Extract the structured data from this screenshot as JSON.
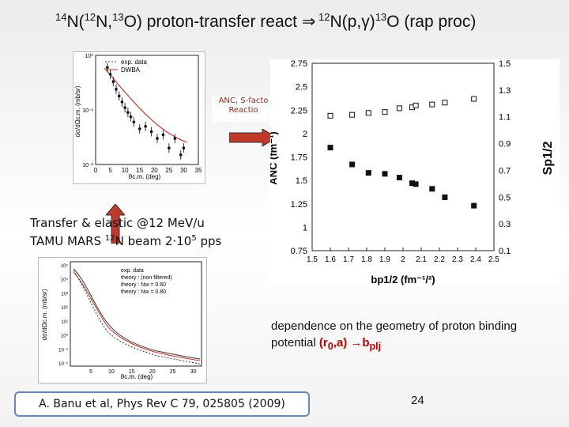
{
  "slide": {
    "title_parts": [
      "14",
      "N(",
      "12",
      "N,",
      "13",
      "O) proton-transfer react ",
      "⇒",
      " 12",
      "N(p,γ)",
      "13",
      "O (rap proc)"
    ],
    "anc_tag": [
      "ANC, S-facto",
      "Reactio"
    ],
    "transfer_caption": [
      "Transfer & elastic @12 MeV/u",
      "TAMU MARS ",
      "12",
      "N beam 2·10",
      "5",
      " pps"
    ],
    "note_text": "dependence on the geometry of proton binding potential ",
    "note_red": "(r",
    "note_red_sub": "0",
    "note_red_tail": ",a) →b",
    "note_red_tail_sub": "plj",
    "reference": "A. Banu et al, Phys Rev C 79, 025805 (2009)",
    "page_number": "24"
  },
  "chart_data": [
    {
      "type": "scatter",
      "name": "transfer-angular-distribution",
      "legend": [
        "exp. data",
        "DWBA"
      ],
      "xlabel": "θc.m. (deg)",
      "ylabel": "dσ/dΩc.m. (mb/sr)",
      "x_ticks": [
        "0",
        "5",
        "10",
        "15",
        "20",
        "25",
        "30",
        "35"
      ],
      "y_ticks": [
        "10⁰",
        "10⁻¹",
        "10⁻²"
      ],
      "x": [
        4,
        5,
        6,
        7,
        8,
        9,
        10,
        11,
        12,
        13,
        15,
        17,
        19,
        21,
        23,
        25,
        27,
        29,
        30
      ],
      "y": [
        0.6,
        0.45,
        0.33,
        0.24,
        0.18,
        0.14,
        0.11,
        0.09,
        0.075,
        0.06,
        0.045,
        0.05,
        0.04,
        0.03,
        0.035,
        0.02,
        0.03,
        0.015,
        0.02
      ]
    },
    {
      "type": "scatter",
      "name": "anc-vs-b",
      "xlabel": "bp1/2 (fm⁻¹/²)",
      "ylabel_left": "ANC (fm⁻¹)",
      "ylabel_right": "Sp1/2",
      "x_ticks": [
        "1.5",
        "1.6",
        "1.7",
        "1.8",
        "1.9",
        "2",
        "2.1",
        "2.2",
        "2.3",
        "2.4",
        "2.5"
      ],
      "yleft_ticks": [
        "0.75",
        "1",
        "1.25",
        "1.5",
        "1.75",
        "2",
        "2.25",
        "2.5",
        "2.75"
      ],
      "yright_ticks": [
        "0.1",
        "0.3",
        "0.5",
        "0.7",
        "0.9",
        "1.1",
        "1.3",
        "1.5"
      ],
      "xlim": [
        1.5,
        2.5
      ],
      "ylim_left": [
        0.75,
        2.75
      ],
      "series": [
        {
          "name": "ANC",
          "marker": "filled-square",
          "x": [
            1.6,
            1.72,
            1.81,
            1.9,
            1.98,
            2.05,
            2.07,
            2.16,
            2.23,
            2.39
          ],
          "y": [
            1.85,
            1.67,
            1.58,
            1.57,
            1.53,
            1.47,
            1.46,
            1.41,
            1.32,
            1.23
          ]
        },
        {
          "name": "S",
          "marker": "open-square",
          "x": [
            1.6,
            1.72,
            1.81,
            1.9,
            1.98,
            2.05,
            2.07,
            2.16,
            2.23,
            2.39
          ],
          "y": [
            2.19,
            2.2,
            2.22,
            2.23,
            2.27,
            2.28,
            2.3,
            2.31,
            2.33,
            2.37
          ]
        }
      ]
    },
    {
      "type": "line",
      "name": "elastic-angular-distribution",
      "legend": [
        "exp. data",
        "theory : (non filtered)",
        "theory : Nw = 0.60",
        "theory : Nw = 0.80"
      ],
      "xlabel": "θc.m. (deg)",
      "ylabel": "dσ/dΩc.m. (mb/sr)",
      "x_ticks": [
        "5",
        "10",
        "15",
        "20",
        "25",
        "30"
      ],
      "y_ticks": [
        "10⁵",
        "10⁴",
        "10³",
        "10²",
        "10¹",
        "10⁰",
        "10⁻¹",
        "10⁻²"
      ]
    }
  ]
}
